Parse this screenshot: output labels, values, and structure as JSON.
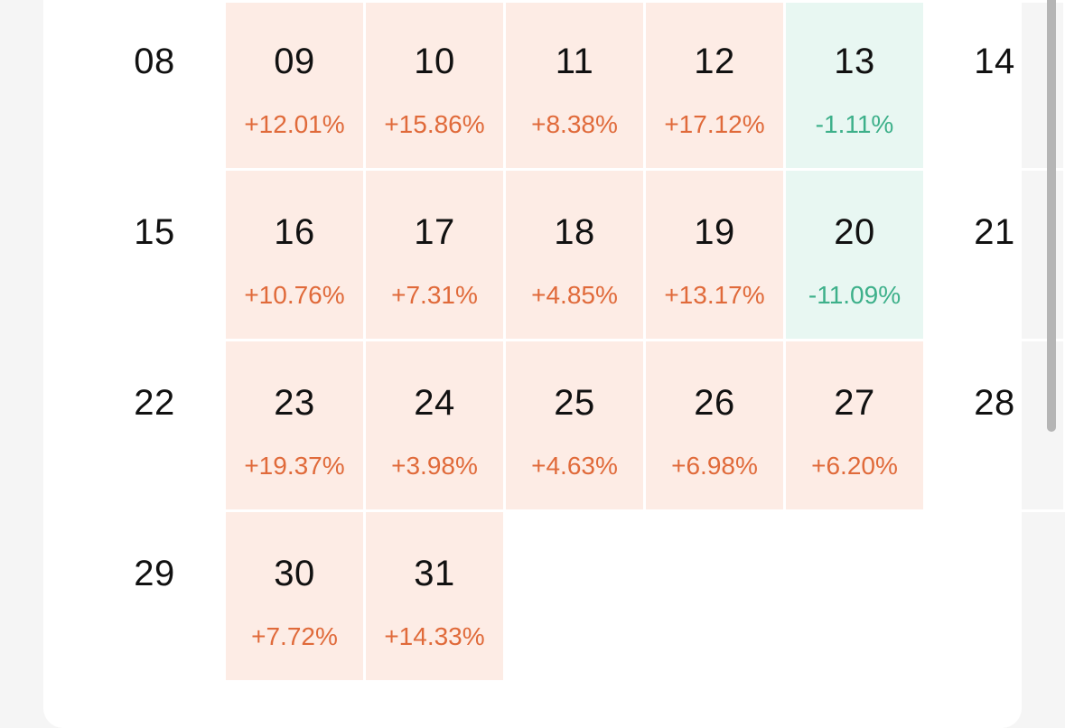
{
  "calendar": {
    "rows": [
      [
        {
          "day": "08",
          "change": "",
          "trend": "none"
        },
        {
          "day": "09",
          "change": "+12.01%",
          "trend": "up"
        },
        {
          "day": "10",
          "change": "+15.86%",
          "trend": "up"
        },
        {
          "day": "11",
          "change": "+8.38%",
          "trend": "up"
        },
        {
          "day": "12",
          "change": "+17.12%",
          "trend": "up"
        },
        {
          "day": "13",
          "change": "-1.11%",
          "trend": "down"
        },
        {
          "day": "14",
          "change": "",
          "trend": "none"
        }
      ],
      [
        {
          "day": "15",
          "change": "",
          "trend": "none"
        },
        {
          "day": "16",
          "change": "+10.76%",
          "trend": "up"
        },
        {
          "day": "17",
          "change": "+7.31%",
          "trend": "up"
        },
        {
          "day": "18",
          "change": "+4.85%",
          "trend": "up"
        },
        {
          "day": "19",
          "change": "+13.17%",
          "trend": "up"
        },
        {
          "day": "20",
          "change": "-11.09%",
          "trend": "down"
        },
        {
          "day": "21",
          "change": "",
          "trend": "none"
        }
      ],
      [
        {
          "day": "22",
          "change": "",
          "trend": "none"
        },
        {
          "day": "23",
          "change": "+19.37%",
          "trend": "up"
        },
        {
          "day": "24",
          "change": "+3.98%",
          "trend": "up"
        },
        {
          "day": "25",
          "change": "+4.63%",
          "trend": "up"
        },
        {
          "day": "26",
          "change": "+6.98%",
          "trend": "up"
        },
        {
          "day": "27",
          "change": "+6.20%",
          "trend": "up"
        },
        {
          "day": "28",
          "change": "",
          "trend": "none"
        }
      ],
      [
        {
          "day": "29",
          "change": "",
          "trend": "none"
        },
        {
          "day": "30",
          "change": "+7.72%",
          "trend": "up"
        },
        {
          "day": "31",
          "change": "+14.33%",
          "trend": "up"
        }
      ]
    ]
  },
  "colors": {
    "up_background": "#fdece5",
    "up_text": "#e06a3a",
    "down_background": "#e8f7f2",
    "down_text": "#3db08a"
  }
}
